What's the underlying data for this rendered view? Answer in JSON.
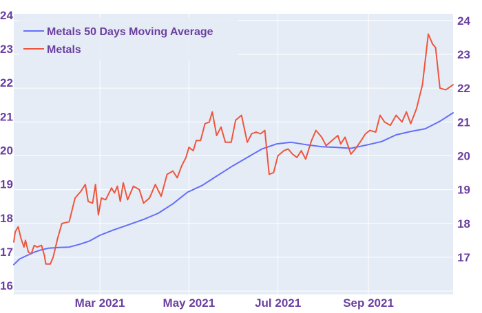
{
  "chart_data": {
    "type": "line",
    "x_range": [
      "2021-01-01",
      "2021-10-29"
    ],
    "y_range": [
      15.9,
      24.2
    ],
    "left_ticks": [
      {
        "value": 16,
        "label": "16"
      },
      {
        "value": 17,
        "label": "17"
      },
      {
        "value": 18,
        "label": "18"
      },
      {
        "value": 19,
        "label": "19"
      },
      {
        "value": 20,
        "label": "20"
      },
      {
        "value": 21,
        "label": "21"
      },
      {
        "value": 22,
        "label": "22"
      },
      {
        "value": 23,
        "label": "23"
      },
      {
        "value": 24,
        "label": "24"
      }
    ],
    "right_ticks": [
      {
        "value": 17,
        "label": "17"
      },
      {
        "value": 18,
        "label": "18"
      },
      {
        "value": 19,
        "label": "19"
      },
      {
        "value": 20,
        "label": "20"
      },
      {
        "value": 21,
        "label": "21"
      },
      {
        "value": 22,
        "label": "22"
      },
      {
        "value": 23,
        "label": "23"
      },
      {
        "value": 24,
        "label": "24"
      }
    ],
    "x_ticks": [
      {
        "date": "2021-03-01",
        "label": "Mar 2021"
      },
      {
        "date": "2021-05-01",
        "label": "May 2021"
      },
      {
        "date": "2021-07-01",
        "label": "Jul 2021"
      },
      {
        "date": "2021-09-01",
        "label": "Sep 2021"
      }
    ],
    "grid": true,
    "legend_position": "top-left",
    "colors": {
      "background": "#e5ecf6",
      "tick_text": "#6b3fa0",
      "grid": "#ffffff"
    },
    "series": [
      {
        "name": "Metals 50 Days Moving Average",
        "color": "#636efa",
        "points": [
          [
            "2021-01-01",
            16.78
          ],
          [
            "2021-01-05",
            16.95
          ],
          [
            "2021-01-10",
            17.05
          ],
          [
            "2021-01-15",
            17.15
          ],
          [
            "2021-01-20",
            17.22
          ],
          [
            "2021-01-25",
            17.27
          ],
          [
            "2021-02-01",
            17.29
          ],
          [
            "2021-02-08",
            17.3
          ],
          [
            "2021-02-15",
            17.38
          ],
          [
            "2021-02-22",
            17.48
          ],
          [
            "2021-03-01",
            17.65
          ],
          [
            "2021-03-10",
            17.8
          ],
          [
            "2021-03-20",
            17.95
          ],
          [
            "2021-03-31",
            18.12
          ],
          [
            "2021-04-10",
            18.3
          ],
          [
            "2021-04-20",
            18.58
          ],
          [
            "2021-04-30",
            18.92
          ],
          [
            "2021-05-10",
            19.12
          ],
          [
            "2021-05-20",
            19.4
          ],
          [
            "2021-05-31",
            19.7
          ],
          [
            "2021-06-10",
            19.95
          ],
          [
            "2021-06-20",
            20.2
          ],
          [
            "2021-06-30",
            20.35
          ],
          [
            "2021-07-10",
            20.4
          ],
          [
            "2021-07-20",
            20.33
          ],
          [
            "2021-07-31",
            20.27
          ],
          [
            "2021-08-10",
            20.25
          ],
          [
            "2021-08-20",
            20.22
          ],
          [
            "2021-08-31",
            20.32
          ],
          [
            "2021-09-10",
            20.42
          ],
          [
            "2021-09-20",
            20.62
          ],
          [
            "2021-09-30",
            20.72
          ],
          [
            "2021-10-10",
            20.8
          ],
          [
            "2021-10-20",
            21.02
          ],
          [
            "2021-10-29",
            21.27
          ]
        ]
      },
      {
        "name": "Metals",
        "color": "#ef553b",
        "points": [
          [
            "2021-01-01",
            17.45
          ],
          [
            "2021-01-02",
            17.75
          ],
          [
            "2021-01-04",
            17.9
          ],
          [
            "2021-01-06",
            17.55
          ],
          [
            "2021-01-08",
            17.3
          ],
          [
            "2021-01-09",
            17.5
          ],
          [
            "2021-01-11",
            17.15
          ],
          [
            "2021-01-13",
            17.1
          ],
          [
            "2021-01-15",
            17.35
          ],
          [
            "2021-01-17",
            17.3
          ],
          [
            "2021-01-20",
            17.35
          ],
          [
            "2021-01-22",
            17.05
          ],
          [
            "2021-01-23",
            16.8
          ],
          [
            "2021-01-26",
            16.8
          ],
          [
            "2021-01-28",
            17.0
          ],
          [
            "2021-01-31",
            17.55
          ],
          [
            "2021-02-03",
            18.0
          ],
          [
            "2021-02-08",
            18.05
          ],
          [
            "2021-02-12",
            18.75
          ],
          [
            "2021-02-16",
            18.95
          ],
          [
            "2021-02-19",
            19.15
          ],
          [
            "2021-02-21",
            18.65
          ],
          [
            "2021-02-24",
            18.6
          ],
          [
            "2021-02-26",
            19.15
          ],
          [
            "2021-02-28",
            18.25
          ],
          [
            "2021-03-02",
            18.75
          ],
          [
            "2021-03-05",
            18.7
          ],
          [
            "2021-03-09",
            19.05
          ],
          [
            "2021-03-11",
            18.9
          ],
          [
            "2021-03-13",
            19.1
          ],
          [
            "2021-03-15",
            18.65
          ],
          [
            "2021-03-17",
            19.2
          ],
          [
            "2021-03-20",
            18.7
          ],
          [
            "2021-03-24",
            19.1
          ],
          [
            "2021-03-28",
            19.0
          ],
          [
            "2021-03-31",
            18.6
          ],
          [
            "2021-04-04",
            18.75
          ],
          [
            "2021-04-08",
            19.15
          ],
          [
            "2021-04-12",
            18.8
          ],
          [
            "2021-04-16",
            19.45
          ],
          [
            "2021-04-20",
            19.55
          ],
          [
            "2021-04-23",
            19.35
          ],
          [
            "2021-04-26",
            19.7
          ],
          [
            "2021-04-29",
            19.95
          ],
          [
            "2021-05-01",
            20.25
          ],
          [
            "2021-05-04",
            20.15
          ],
          [
            "2021-05-06",
            20.45
          ],
          [
            "2021-05-09",
            20.45
          ],
          [
            "2021-05-12",
            20.95
          ],
          [
            "2021-05-15",
            21.0
          ],
          [
            "2021-05-17",
            21.3
          ],
          [
            "2021-05-20",
            20.6
          ],
          [
            "2021-05-23",
            20.85
          ],
          [
            "2021-05-26",
            20.4
          ],
          [
            "2021-05-30",
            20.4
          ],
          [
            "2021-06-02",
            21.05
          ],
          [
            "2021-06-06",
            21.2
          ],
          [
            "2021-06-10",
            20.4
          ],
          [
            "2021-06-13",
            20.65
          ],
          [
            "2021-06-16",
            20.7
          ],
          [
            "2021-06-19",
            20.65
          ],
          [
            "2021-06-22",
            20.75
          ],
          [
            "2021-06-25",
            19.45
          ],
          [
            "2021-06-28",
            19.5
          ],
          [
            "2021-07-01",
            20.0
          ],
          [
            "2021-07-05",
            20.15
          ],
          [
            "2021-07-08",
            20.2
          ],
          [
            "2021-07-11",
            20.05
          ],
          [
            "2021-07-14",
            19.95
          ],
          [
            "2021-07-17",
            20.15
          ],
          [
            "2021-07-20",
            19.9
          ],
          [
            "2021-07-24",
            20.45
          ],
          [
            "2021-07-27",
            20.75
          ],
          [
            "2021-07-31",
            20.55
          ],
          [
            "2021-08-03",
            20.3
          ],
          [
            "2021-08-07",
            20.45
          ],
          [
            "2021-08-11",
            20.6
          ],
          [
            "2021-08-13",
            20.35
          ],
          [
            "2021-08-16",
            20.55
          ],
          [
            "2021-08-20",
            20.05
          ],
          [
            "2021-08-23",
            20.2
          ],
          [
            "2021-08-27",
            20.45
          ],
          [
            "2021-08-30",
            20.65
          ],
          [
            "2021-09-02",
            20.75
          ],
          [
            "2021-09-06",
            20.7
          ],
          [
            "2021-09-09",
            21.2
          ],
          [
            "2021-09-12",
            21.0
          ],
          [
            "2021-09-16",
            20.9
          ],
          [
            "2021-09-20",
            21.2
          ],
          [
            "2021-09-24",
            21.0
          ],
          [
            "2021-09-27",
            21.3
          ],
          [
            "2021-09-30",
            20.95
          ],
          [
            "2021-10-04",
            21.4
          ],
          [
            "2021-10-08",
            22.1
          ],
          [
            "2021-10-12",
            23.6
          ],
          [
            "2021-10-15",
            23.3
          ],
          [
            "2021-10-17",
            23.2
          ],
          [
            "2021-10-20",
            22.0
          ],
          [
            "2021-10-24",
            21.95
          ],
          [
            "2021-10-29",
            22.1
          ]
        ]
      }
    ]
  }
}
